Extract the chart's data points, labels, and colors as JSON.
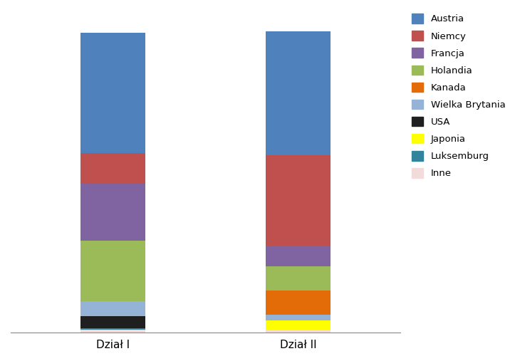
{
  "categories": [
    "Dział I",
    "Dział II"
  ],
  "series": [
    {
      "name": "Inne",
      "color": "#F2DCDB",
      "values": [
        1.0,
        1.0
      ]
    },
    {
      "name": "Luksemburg",
      "color": "#31849B",
      "values": [
        0.5,
        0.0
      ]
    },
    {
      "name": "Japonia",
      "color": "#FFFF00",
      "values": [
        0.0,
        3.0
      ]
    },
    {
      "name": "USA",
      "color": "#1F1F1F",
      "values": [
        4.0,
        0.0
      ]
    },
    {
      "name": "Wielka Brytania",
      "color": "#95B3D7",
      "values": [
        5.0,
        2.0
      ]
    },
    {
      "name": "Kanada",
      "color": "#E36C09",
      "values": [
        0.0,
        8.0
      ]
    },
    {
      "name": "Holandia",
      "color": "#9BBB59",
      "values": [
        20.0,
        8.0
      ]
    },
    {
      "name": "Francja",
      "color": "#8064A2",
      "values": [
        19.0,
        7.0
      ]
    },
    {
      "name": "Niemcy",
      "color": "#C0504D",
      "values": [
        10.0,
        30.0
      ]
    },
    {
      "name": "Austria",
      "color": "#4F81BD",
      "values": [
        40.0,
        41.0
      ]
    }
  ],
  "legend_order": [
    "Austria",
    "Niemcy",
    "Francja",
    "Holandia",
    "Kanada",
    "Wielka Brytania",
    "USA",
    "Japonia",
    "Luksemburg",
    "Inne"
  ],
  "bar_width": 0.35,
  "x_positions": [
    0,
    1
  ],
  "figsize": [
    7.3,
    5.07
  ],
  "dpi": 100,
  "background_color": "#FFFFFF",
  "xlim": [
    -0.55,
    1.55
  ],
  "legend_fontsize": 9.5,
  "xtick_fontsize": 11
}
